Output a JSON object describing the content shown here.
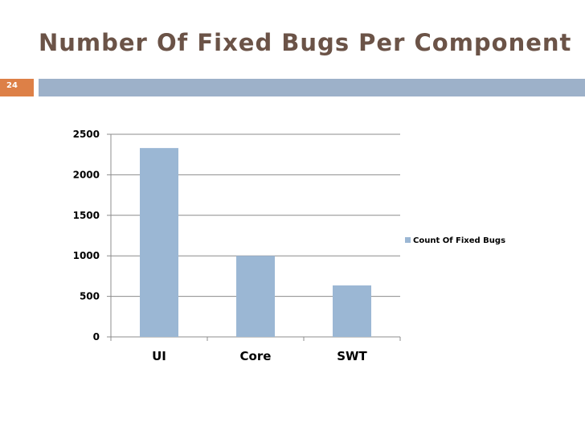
{
  "slide": {
    "title": "Number Of Fixed Bugs Per Component",
    "number": "24"
  },
  "colors": {
    "title": "#6b5347",
    "number_badge": "#dd8047",
    "header_rule": "#9db1c9",
    "bar": "#9bb7d4"
  },
  "chart_data": {
    "type": "bar",
    "categories": [
      "UI",
      "Core",
      "SWT"
    ],
    "series": [
      {
        "name": "Count Of Fixed Bugs",
        "values": [
          2330,
          1000,
          635
        ]
      }
    ],
    "ylim": [
      0,
      2500
    ],
    "yticks": [
      "0",
      "500",
      "1000",
      "1500",
      "2000",
      "2500"
    ],
    "grid": true,
    "legend": "right"
  }
}
